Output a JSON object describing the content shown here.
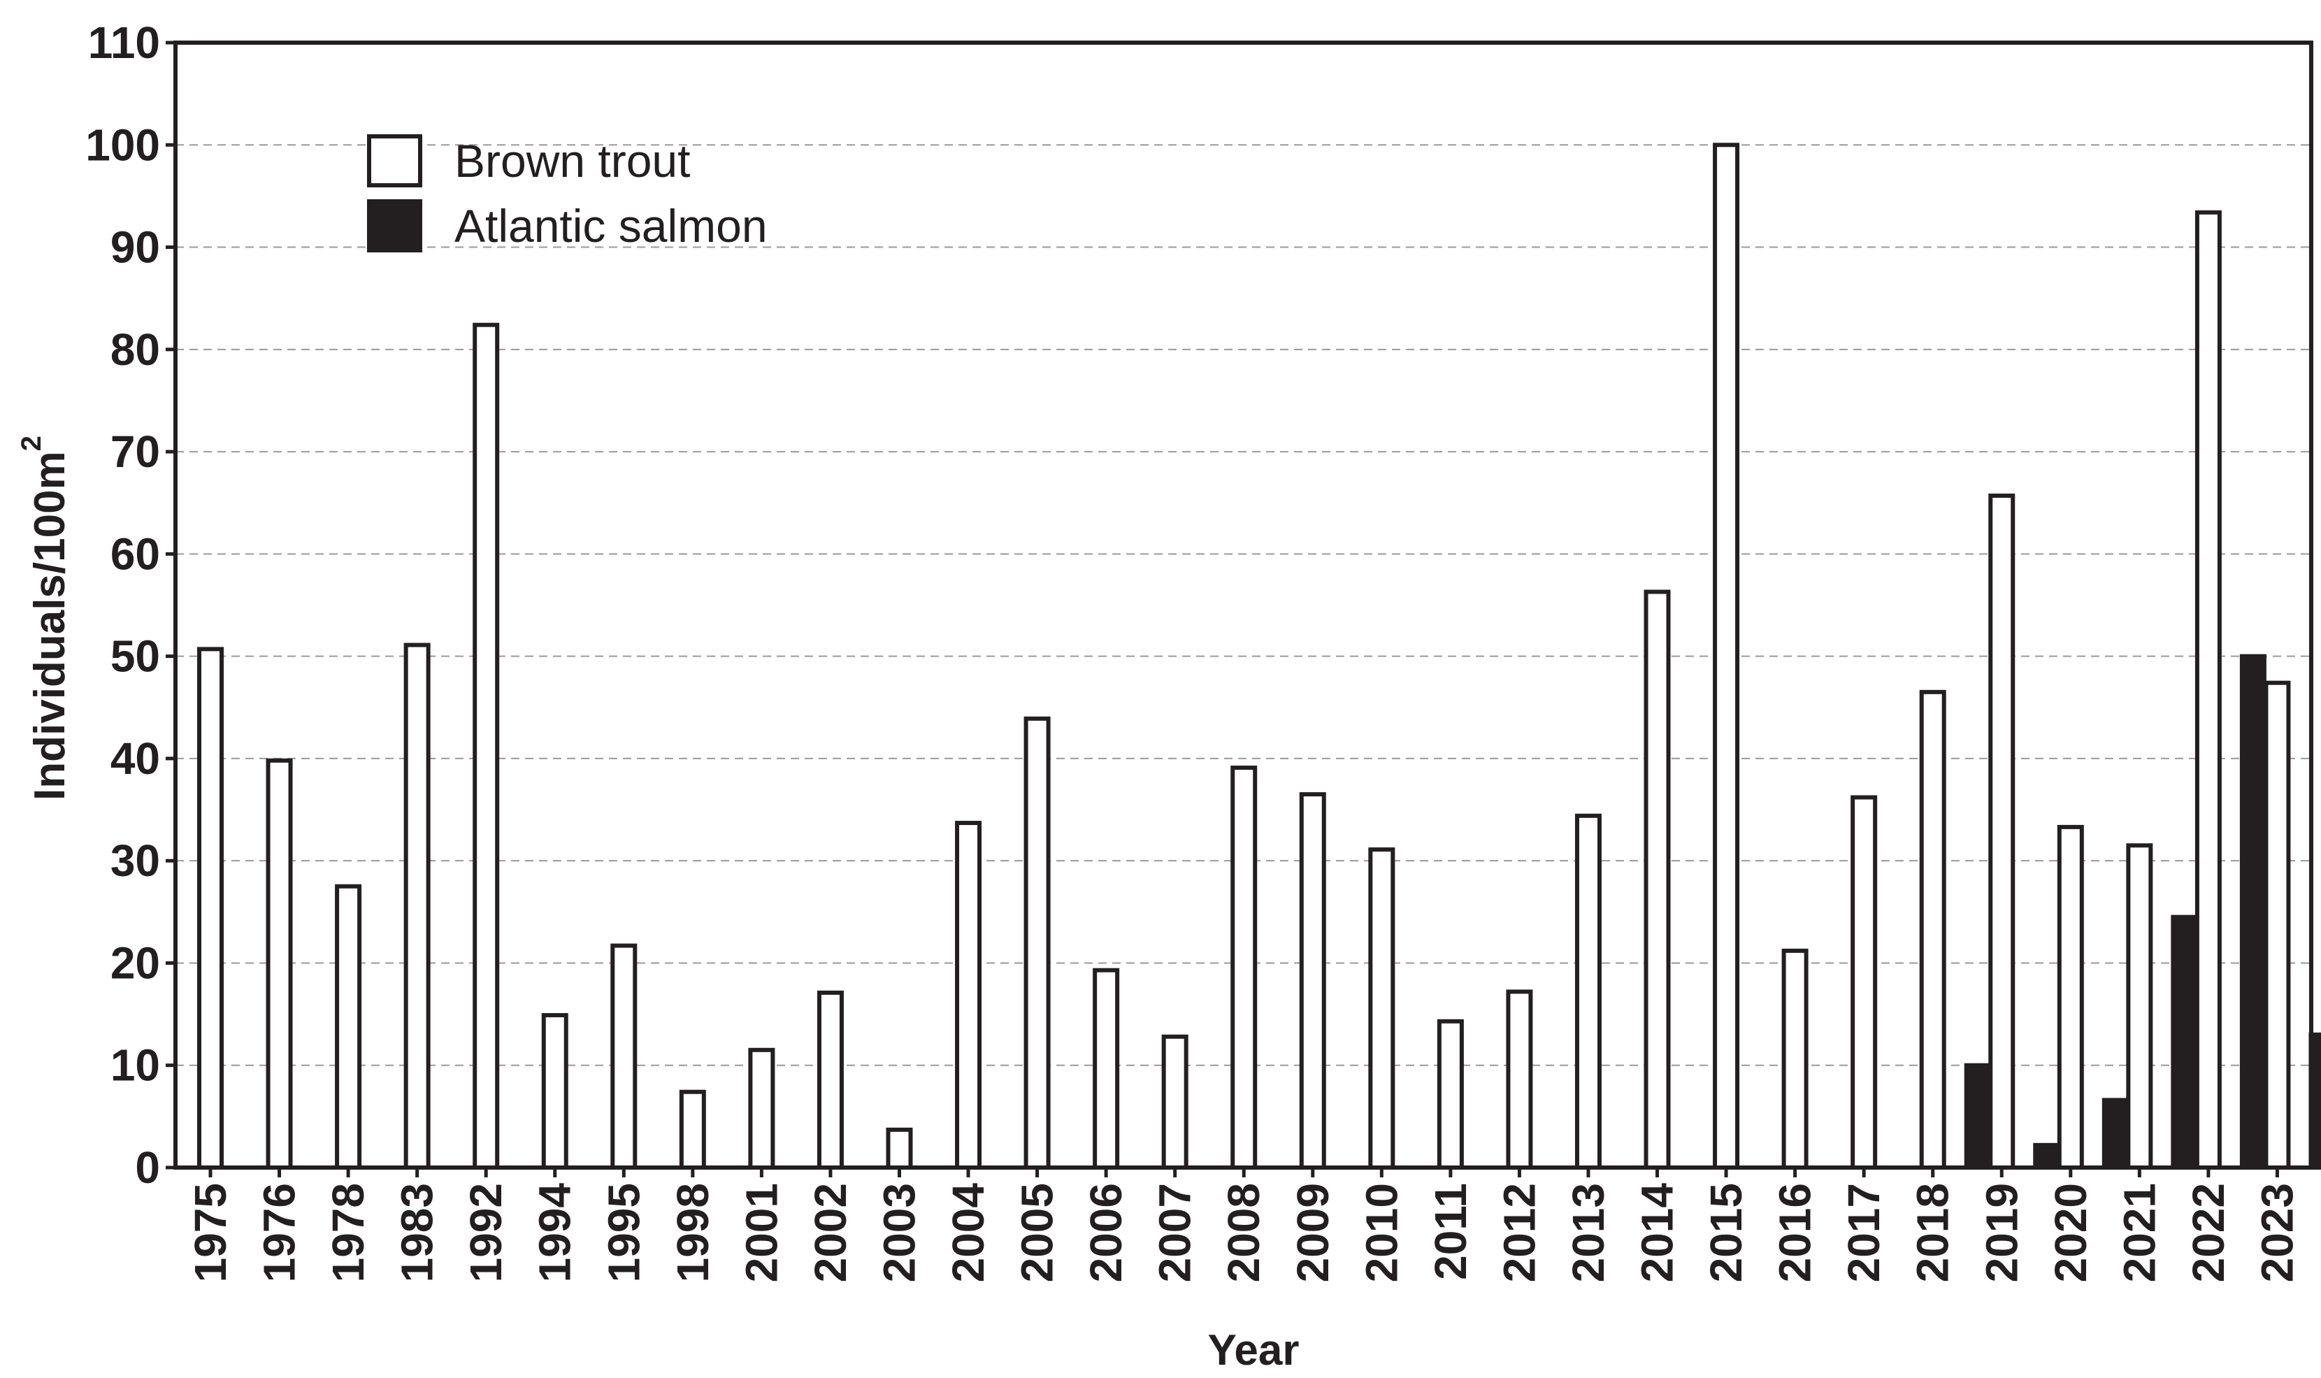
{
  "chart_data": {
    "type": "bar",
    "title": "",
    "xlabel": "Year",
    "ylabel": "Individuals/100m",
    "ylabel_superscript": "2",
    "ylim": [
      0,
      110
    ],
    "yticks": [
      "0",
      "10",
      "20",
      "30",
      "40",
      "50",
      "60",
      "70",
      "80",
      "90",
      "100",
      "110"
    ],
    "grid": "horizontal dashed",
    "legend_position": "top-left",
    "categories": [
      "1975",
      "1976",
      "1978",
      "1983",
      "1992",
      "1994",
      "1995",
      "1998",
      "2001",
      "2002",
      "2003",
      "2004",
      "2005",
      "2006",
      "2007",
      "2008",
      "2009",
      "2010",
      "2011",
      "2012",
      "2013",
      "2014",
      "2015",
      "2016",
      "2017",
      "2018",
      "2019",
      "2020",
      "2021",
      "2022",
      "2023"
    ],
    "series": [
      {
        "name": "Brown trout",
        "fill": "#ffffff",
        "stroke": "#231f20",
        "values": [
          50.7,
          39.8,
          27.5,
          51.1,
          82.4,
          14.9,
          21.7,
          7.4,
          11.5,
          17.1,
          3.7,
          33.7,
          43.9,
          19.3,
          12.8,
          39.1,
          36.5,
          31.1,
          14.3,
          17.2,
          34.4,
          56.3,
          100.0,
          21.2,
          36.2,
          46.5,
          65.7,
          33.3,
          31.5,
          93.4,
          47.4
        ]
      },
      {
        "name": "Atlantic salmon",
        "fill": "#231f20",
        "stroke": "#231f20",
        "values": [
          null,
          null,
          null,
          null,
          null,
          null,
          null,
          null,
          null,
          null,
          null,
          null,
          null,
          null,
          null,
          null,
          null,
          null,
          null,
          null,
          null,
          null,
          null,
          null,
          null,
          10.0,
          2.2,
          6.6,
          24.5,
          50.0,
          13.0
        ]
      }
    ]
  }
}
